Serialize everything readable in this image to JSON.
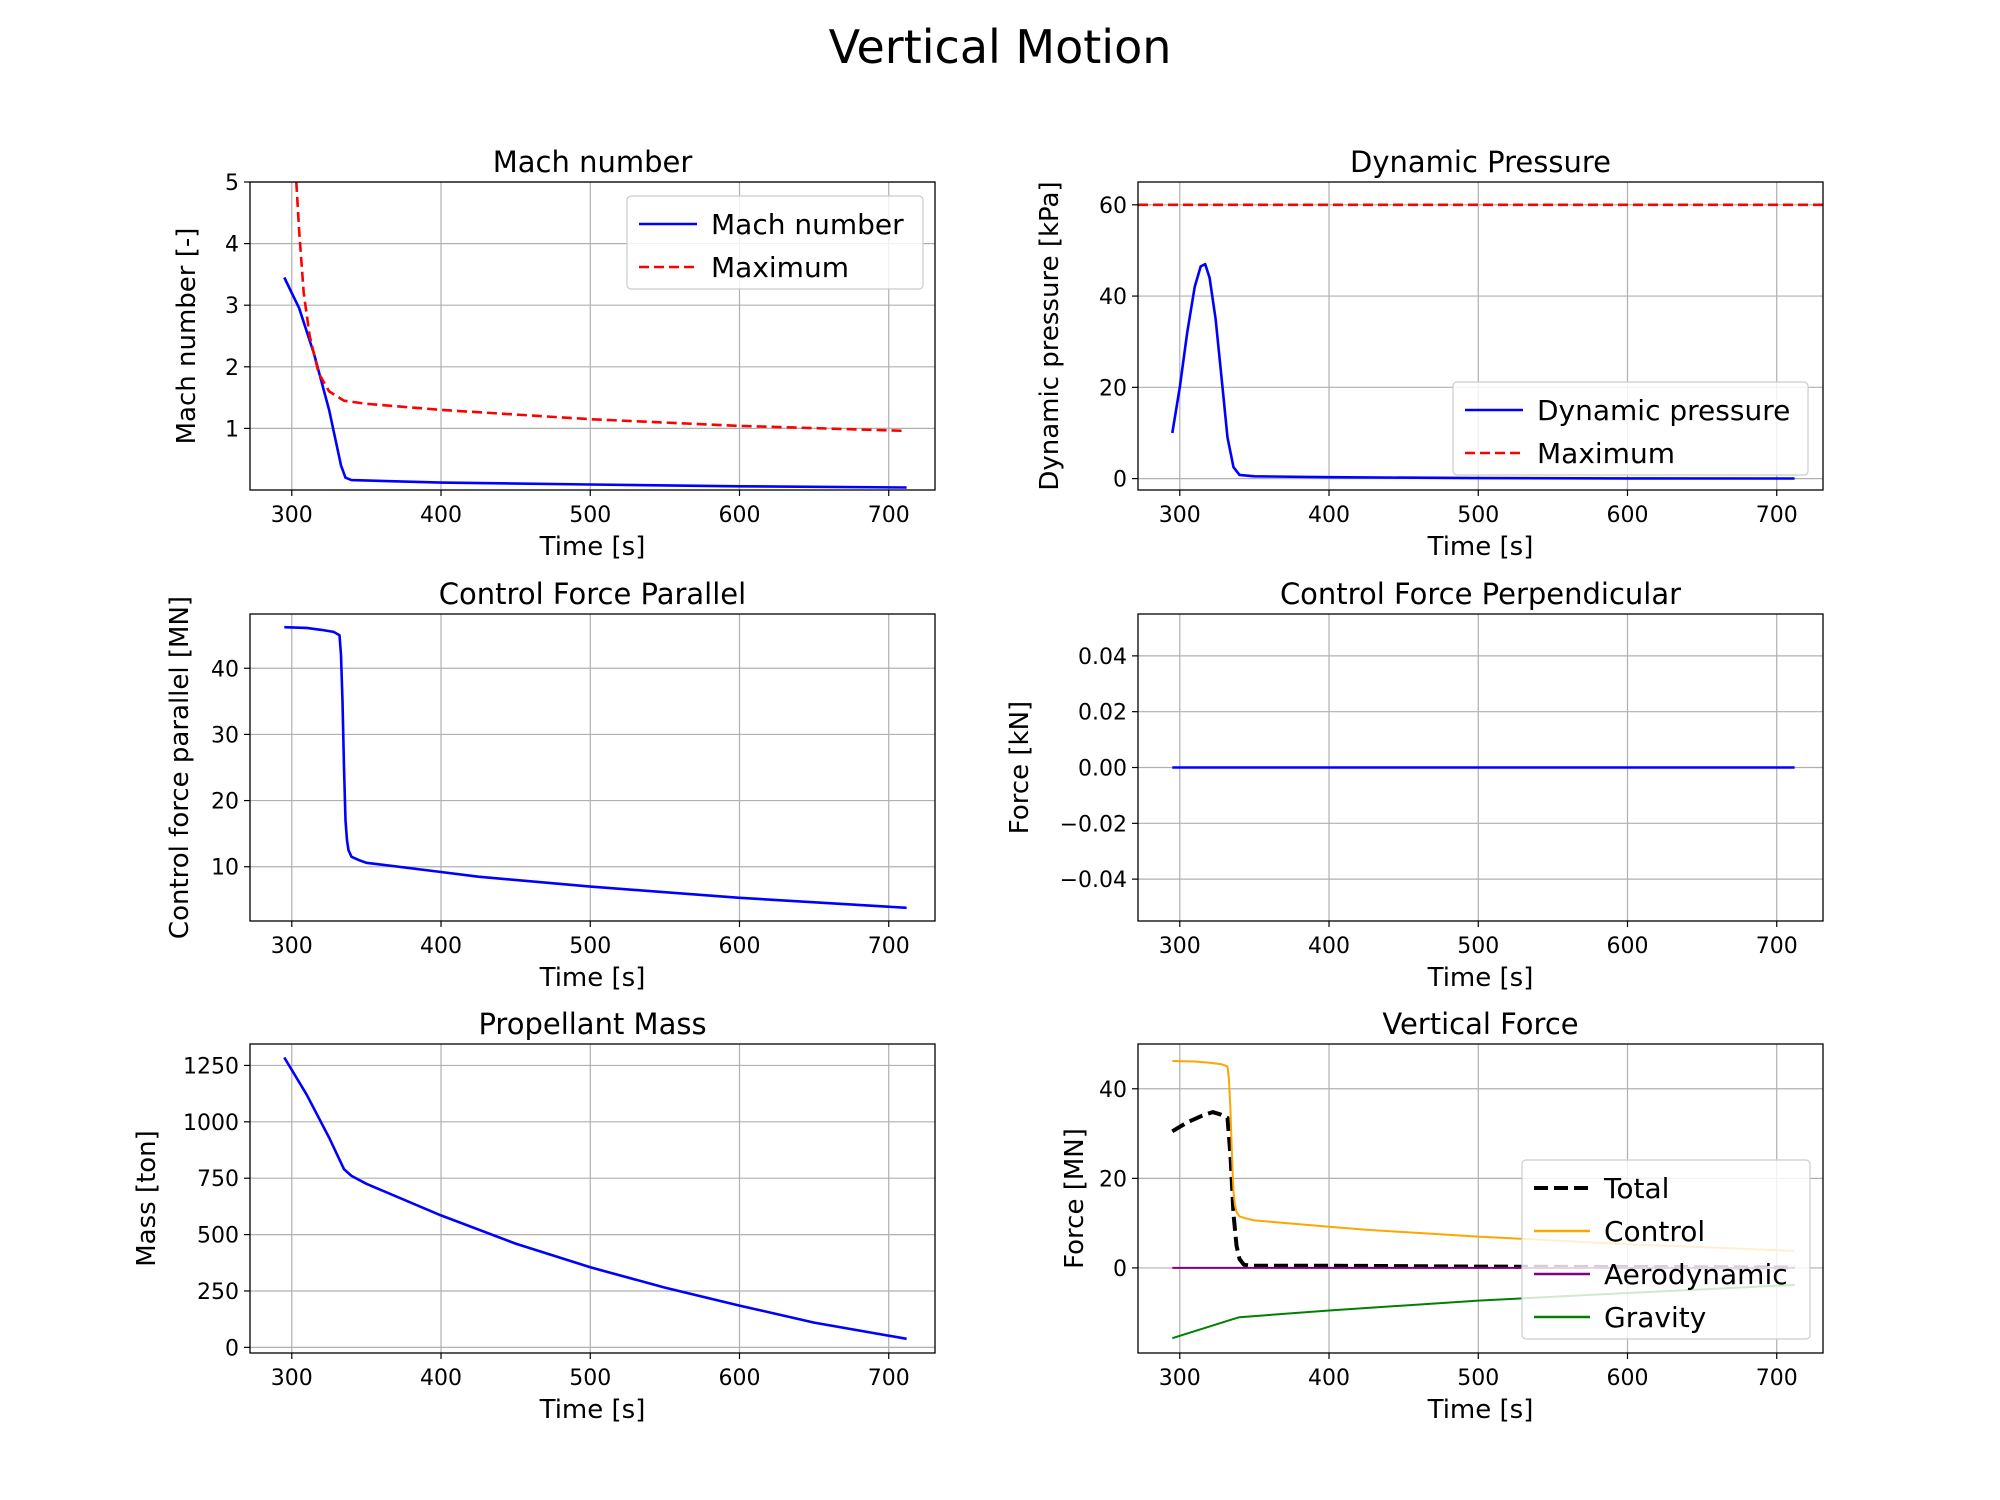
{
  "title": "Vertical Motion",
  "chart_data": [
    {
      "type": "line",
      "title": "Mach number",
      "xlabel": "Time [s]",
      "ylabel": "Mach number [-]",
      "xlim": [
        272,
        731
      ],
      "ylim": [
        0,
        5
      ],
      "xticks": [
        300,
        400,
        500,
        600,
        700
      ],
      "yticks": [
        1,
        2,
        3,
        4,
        5
      ],
      "grid": true,
      "legend": "upper right",
      "series": [
        {
          "name": "Mach number",
          "color": "#0000ff",
          "dash": "solid",
          "x": [
            295,
            305,
            315,
            325,
            333,
            336,
            340,
            400,
            500,
            600,
            712
          ],
          "y": [
            3.45,
            2.95,
            2.2,
            1.3,
            0.4,
            0.2,
            0.16,
            0.12,
            0.09,
            0.06,
            0.04
          ]
        },
        {
          "name": "Maximum",
          "color": "#ff0000",
          "dash": "dashed",
          "x": [
            303,
            305,
            308,
            312,
            318,
            325,
            335,
            350,
            400,
            500,
            600,
            712
          ],
          "y": [
            5.0,
            4.2,
            3.2,
            2.5,
            1.9,
            1.6,
            1.45,
            1.4,
            1.3,
            1.15,
            1.04,
            0.96
          ]
        }
      ]
    },
    {
      "type": "line",
      "title": "Dynamic Pressure",
      "xlabel": "Time [s]",
      "ylabel": "Dynamic pressure [kPa]",
      "xlim": [
        272,
        731
      ],
      "ylim": [
        -2.5,
        65
      ],
      "xticks": [
        300,
        400,
        500,
        600,
        700
      ],
      "yticks": [
        0,
        20,
        40,
        60
      ],
      "grid": true,
      "legend": "lower right",
      "series": [
        {
          "name": "Dynamic pressure",
          "color": "#0000ff",
          "dash": "solid",
          "x": [
            295,
            300,
            305,
            310,
            314,
            317,
            320,
            324,
            328,
            332,
            336,
            340,
            350,
            400,
            500,
            600,
            712
          ],
          "y": [
            10,
            20,
            32,
            42,
            46.5,
            47,
            44,
            35,
            22,
            9,
            2.5,
            0.8,
            0.5,
            0.3,
            0.1,
            0.05,
            0.02
          ]
        },
        {
          "name": "Maximum",
          "color": "#ff0000",
          "dash": "dashed",
          "x": [
            272,
            731
          ],
          "y": [
            60,
            60
          ]
        }
      ]
    },
    {
      "type": "line",
      "title": "Control Force Parallel",
      "xlabel": "Time [s]",
      "ylabel": "Control force parallel [MN]",
      "xlim": [
        272,
        731
      ],
      "ylim": [
        1.8,
        48.2
      ],
      "xticks": [
        300,
        400,
        500,
        600,
        700
      ],
      "yticks": [
        10,
        20,
        30,
        40
      ],
      "grid": true,
      "series": [
        {
          "name": "",
          "color": "#0000ff",
          "dash": "solid",
          "x": [
            295,
            310,
            320,
            328,
            332,
            333,
            334,
            335,
            336,
            337,
            338,
            340,
            345,
            350,
            400,
            425,
            500,
            600,
            712
          ],
          "y": [
            46.2,
            46.1,
            45.8,
            45.5,
            45,
            42,
            35,
            25,
            17,
            14,
            12.5,
            11.5,
            11,
            10.6,
            9.2,
            8.5,
            7,
            5.3,
            3.8
          ]
        }
      ]
    },
    {
      "type": "line",
      "title": "Control Force Perpendicular",
      "xlabel": "Time [s]",
      "ylabel": "Force [kN]",
      "xlim": [
        272,
        731
      ],
      "ylim": [
        -0.055,
        0.055
      ],
      "xticks": [
        300,
        400,
        500,
        600,
        700
      ],
      "yticks": [
        -0.04,
        -0.02,
        0.0,
        0.02,
        0.04
      ],
      "ytick_labels": [
        "−0.04",
        "−0.02",
        "0.00",
        "0.02",
        "0.04"
      ],
      "grid": true,
      "series": [
        {
          "name": "",
          "color": "#0000ff",
          "dash": "solid",
          "x": [
            295,
            712
          ],
          "y": [
            0,
            0
          ]
        }
      ]
    },
    {
      "type": "line",
      "title": "Propellant Mass",
      "xlabel": "Time [s]",
      "ylabel": "Mass [ton]",
      "xlim": [
        272,
        731
      ],
      "ylim": [
        -25,
        1345
      ],
      "xticks": [
        300,
        400,
        500,
        600,
        700
      ],
      "yticks": [
        0,
        250,
        500,
        750,
        1000,
        1250
      ],
      "grid": true,
      "series": [
        {
          "name": "",
          "color": "#0000ff",
          "dash": "solid",
          "x": [
            295,
            310,
            325,
            335,
            340,
            350,
            400,
            450,
            500,
            550,
            600,
            650,
            712
          ],
          "y": [
            1285,
            1120,
            930,
            790,
            760,
            725,
            585,
            460,
            355,
            265,
            185,
            110,
            38
          ]
        }
      ]
    },
    {
      "type": "line",
      "title": "Vertical Force",
      "xlabel": "Time [s]",
      "ylabel": "Force [MN]",
      "xlim": [
        272,
        731
      ],
      "ylim": [
        -19,
        50
      ],
      "xticks": [
        300,
        400,
        500,
        600,
        700
      ],
      "yticks": [
        0,
        20,
        40
      ],
      "grid": true,
      "legend": "lower right",
      "series": [
        {
          "name": "Total",
          "color": "#000000",
          "dash": "dashed",
          "x": [
            295,
            305,
            315,
            322,
            327,
            332,
            334,
            336,
            338,
            340,
            343,
            348,
            400,
            500,
            600,
            712
          ],
          "y": [
            30.5,
            32.5,
            34,
            34.8,
            34.3,
            33.5,
            25,
            12,
            5,
            2,
            0.7,
            0.5,
            0.5,
            0.3,
            0.2,
            0.1
          ]
        },
        {
          "name": "Control",
          "color": "#ffa500",
          "dash": "solid",
          "x": [
            295,
            310,
            320,
            328,
            332,
            333,
            334,
            335,
            336,
            337,
            338,
            340,
            345,
            350,
            400,
            425,
            500,
            600,
            712
          ],
          "y": [
            46.2,
            46.1,
            45.8,
            45.5,
            45,
            42,
            35,
            25,
            17,
            14,
            12.5,
            11.5,
            11,
            10.6,
            9.2,
            8.5,
            7,
            5.3,
            3.8
          ]
        },
        {
          "name": "Aerodynamic",
          "color": "#800080",
          "dash": "solid",
          "x": [
            295,
            712
          ],
          "y": [
            0,
            0
          ]
        },
        {
          "name": "Gravity",
          "color": "#008000",
          "dash": "solid",
          "x": [
            295,
            335,
            340,
            400,
            500,
            600,
            712
          ],
          "y": [
            -15.7,
            -11.5,
            -11,
            -9.5,
            -7.3,
            -5.6,
            -3.8
          ]
        }
      ]
    }
  ]
}
